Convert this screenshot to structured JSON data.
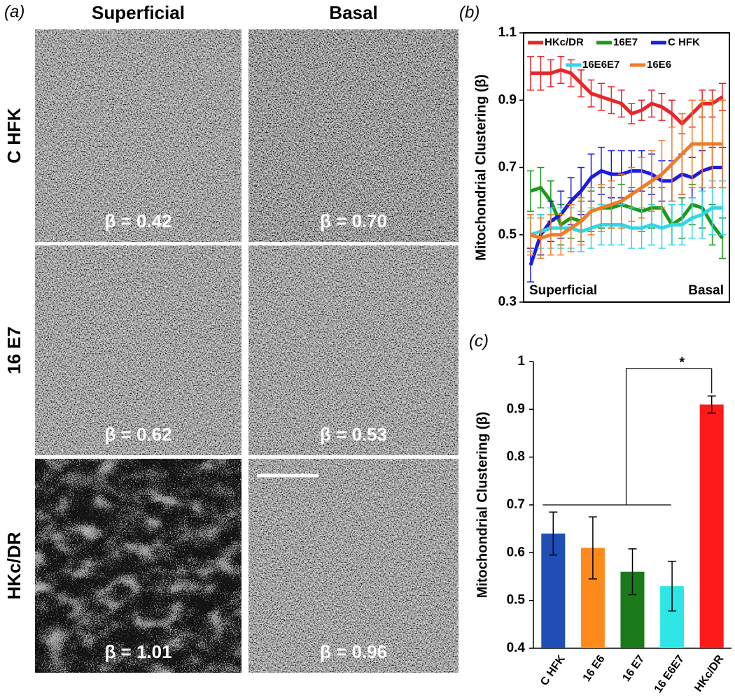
{
  "panel_a": {
    "label": "(a)",
    "columns": [
      "Superficial",
      "Basal"
    ],
    "rows": [
      "C HFK",
      "16 E7",
      "HKc/DR"
    ],
    "beta_labels": [
      [
        "β = 0.42",
        "β = 0.70"
      ],
      [
        "β = 0.62",
        "β = 0.53"
      ],
      [
        "β = 1.01",
        "β = 0.96"
      ]
    ]
  },
  "chart_data": [
    {
      "type": "line",
      "panel_label": "(b)",
      "y_label": "Mitochondrial Clustering (β)",
      "ylim": [
        0.3,
        1.1
      ],
      "yticks": [
        0.3,
        0.5,
        0.7,
        0.9,
        1.1
      ],
      "annotations": [
        "Superficial",
        "Basal"
      ],
      "series": [
        {
          "name": "HKc/DR",
          "color": "#e8262a",
          "values": [
            0.98,
            0.98,
            0.98,
            0.99,
            0.98,
            0.95,
            0.92,
            0.91,
            0.9,
            0.89,
            0.86,
            0.87,
            0.89,
            0.88,
            0.86,
            0.83,
            0.86,
            0.89,
            0.89,
            0.91
          ],
          "errors": [
            0.05,
            0.05,
            0.04,
            0.04,
            0.04,
            0.04,
            0.04,
            0.04,
            0.04,
            0.04,
            0.03,
            0.03,
            0.04,
            0.04,
            0.04,
            0.03,
            0.04,
            0.04,
            0.04,
            0.04
          ]
        },
        {
          "name": "16E7",
          "color": "#1b9a1b",
          "values": [
            0.63,
            0.64,
            0.6,
            0.53,
            0.55,
            0.54,
            0.57,
            0.58,
            0.58,
            0.59,
            0.58,
            0.57,
            0.58,
            0.58,
            0.53,
            0.55,
            0.59,
            0.58,
            0.53,
            0.49
          ],
          "errors": [
            0.06,
            0.06,
            0.06,
            0.06,
            0.06,
            0.06,
            0.06,
            0.06,
            0.06,
            0.06,
            0.06,
            0.06,
            0.06,
            0.06,
            0.06,
            0.06,
            0.06,
            0.06,
            0.06,
            0.06
          ]
        },
        {
          "name": "C HFK",
          "color": "#1c1ce0",
          "values": [
            0.41,
            0.5,
            0.54,
            0.56,
            0.6,
            0.63,
            0.67,
            0.69,
            0.68,
            0.68,
            0.69,
            0.69,
            0.68,
            0.66,
            0.66,
            0.68,
            0.67,
            0.69,
            0.7,
            0.7
          ],
          "errors": [
            0.05,
            0.06,
            0.06,
            0.07,
            0.07,
            0.07,
            0.07,
            0.07,
            0.07,
            0.07,
            0.06,
            0.06,
            0.06,
            0.06,
            0.06,
            0.06,
            0.06,
            0.06,
            0.06,
            0.06
          ]
        },
        {
          "name": "16E6E7",
          "color": "#33d6e6",
          "values": [
            0.5,
            0.51,
            0.52,
            0.52,
            0.52,
            0.51,
            0.52,
            0.53,
            0.53,
            0.53,
            0.52,
            0.52,
            0.53,
            0.52,
            0.53,
            0.53,
            0.55,
            0.56,
            0.58,
            0.58
          ],
          "errors": [
            0.05,
            0.05,
            0.06,
            0.06,
            0.06,
            0.06,
            0.06,
            0.06,
            0.06,
            0.06,
            0.06,
            0.06,
            0.06,
            0.06,
            0.06,
            0.06,
            0.06,
            0.07,
            0.08,
            0.08
          ]
        },
        {
          "name": "16E6",
          "color": "#f07c28",
          "values": [
            0.5,
            0.49,
            0.5,
            0.5,
            0.52,
            0.54,
            0.57,
            0.58,
            0.59,
            0.6,
            0.62,
            0.64,
            0.66,
            0.68,
            0.71,
            0.74,
            0.77,
            0.77,
            0.77,
            0.77
          ],
          "errors": [
            0.06,
            0.06,
            0.06,
            0.06,
            0.07,
            0.07,
            0.07,
            0.07,
            0.07,
            0.08,
            0.08,
            0.09,
            0.09,
            0.1,
            0.11,
            0.12,
            0.13,
            0.13,
            0.13,
            0.13
          ]
        }
      ]
    },
    {
      "type": "bar",
      "panel_label": "(c)",
      "y_label": "Mitochondrial Clustering (β)",
      "ylim": [
        0.4,
        1
      ],
      "yticks": [
        0.4,
        0.5,
        0.6,
        0.7,
        0.8,
        0.9,
        1
      ],
      "categories": [
        "C HFK",
        "16 E6",
        "16 E7",
        "16 E6E7",
        "HKc/DR"
      ],
      "values": [
        0.64,
        0.61,
        0.56,
        0.53,
        0.91
      ],
      "errors": [
        0.045,
        0.065,
        0.048,
        0.052,
        0.018
      ],
      "colors": [
        "#1f4fb5",
        "#ff8a1c",
        "#1a7a1a",
        "#2ee6e6",
        "#ff1a1a"
      ],
      "annotation": "*"
    }
  ]
}
